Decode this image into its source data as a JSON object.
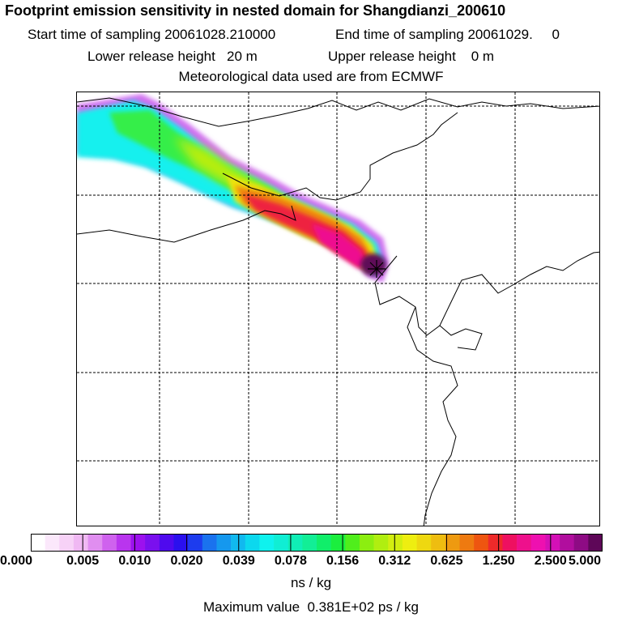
{
  "header": {
    "title": "Footprint emission sensitivity in nested domain for Shangdianzi_200610",
    "start_time": "Start time of sampling 20061028.210000",
    "end_time": "End time of sampling 20061029.     0",
    "lower_height": "Lower release height   20 m",
    "upper_height": "Upper release height    0 m",
    "met_data": "Meteorological data used are from ECMWF"
  },
  "colorbar": {
    "tick_labels": [
      "0.000",
      "0.005",
      "0.010",
      "0.020",
      "0.039",
      "0.078",
      "0.156",
      "0.312",
      "0.625",
      "1.250",
      "2.500",
      "5.000"
    ],
    "colors": [
      "#ffffff",
      "#fbe8fb",
      "#f7d2f7",
      "#f0b8f3",
      "#e08ef0",
      "#cf62ee",
      "#b935ee",
      "#9c11ee",
      "#7a10ee",
      "#4f0aee",
      "#2a10ee",
      "#1d3cee",
      "#1a72ee",
      "#1598ee",
      "#11b9ef",
      "#0cd8ee",
      "#0ff2ee",
      "#10eed4",
      "#10eeb6",
      "#12ee96",
      "#10ee6a",
      "#1bee3e",
      "#50ee1c",
      "#8cee10",
      "#b0ee10",
      "#d2ee10",
      "#eeee10",
      "#eed810",
      "#eebd10",
      "#ee9a10",
      "#ee7a10",
      "#ee5510",
      "#ee2a2a",
      "#ee1060",
      "#ee108c",
      "#ee10b0",
      "#d410b6",
      "#b10e9e",
      "#8e0b84",
      "#5e0758"
    ],
    "units": "ns / kg",
    "max_value": "Maximum value  0.381E+02 ps / kg"
  },
  "map": {
    "receptor_marker": "receptor-cross",
    "grid": "dashed"
  }
}
